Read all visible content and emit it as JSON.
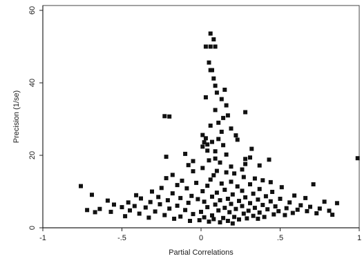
{
  "chart_data": {
    "type": "scatter",
    "title": "",
    "xlabel": "Partial Correlations",
    "ylabel": "Precision (1/se)",
    "xlim": [
      -1,
      1
    ],
    "ylim": [
      0,
      60
    ],
    "x_ticks": [
      {
        "value": -1,
        "label": "-1"
      },
      {
        "value": -0.5,
        "label": "-.5"
      },
      {
        "value": 0,
        "label": "0"
      },
      {
        "value": 0.5,
        "label": ".5"
      },
      {
        "value": 1,
        "label": "1"
      }
    ],
    "y_ticks": [
      {
        "value": 0,
        "label": "0"
      },
      {
        "value": 20,
        "label": "20"
      },
      {
        "value": 40,
        "label": "40"
      },
      {
        "value": 60,
        "label": "60"
      }
    ],
    "grid": false,
    "marker": "filled-square",
    "marker_color": "#111111",
    "points": [
      [
        0.06,
        53.6
      ],
      [
        0.08,
        52.0
      ],
      [
        0.03,
        50.0
      ],
      [
        0.06,
        50.0
      ],
      [
        0.09,
        50.0
      ],
      [
        0.05,
        45.6
      ],
      [
        0.06,
        43.5
      ],
      [
        0.07,
        43.5
      ],
      [
        0.08,
        41.2
      ],
      [
        0.09,
        39.2
      ],
      [
        0.15,
        38.1
      ],
      [
        0.1,
        37.3
      ],
      [
        0.03,
        36.0
      ],
      [
        0.13,
        35.5
      ],
      [
        0.16,
        33.8
      ],
      [
        0.09,
        32.5
      ],
      [
        0.28,
        31.9
      ],
      [
        0.17,
        31.0
      ],
      [
        0.14,
        30.3
      ],
      [
        -0.23,
        30.8
      ],
      [
        -0.2,
        30.7
      ],
      [
        0.11,
        29.0
      ],
      [
        0.06,
        28.2
      ],
      [
        0.19,
        27.4
      ],
      [
        0.13,
        26.5
      ],
      [
        0.22,
        25.5
      ],
      [
        0.01,
        25.6
      ],
      [
        0.03,
        24.7
      ],
      [
        0.11,
        24.5
      ],
      [
        0.23,
        24.3
      ],
      [
        0.02,
        23.6
      ],
      [
        0.07,
        23.7
      ],
      [
        0.04,
        23.0
      ],
      [
        0.01,
        22.4
      ],
      [
        0.14,
        22.8
      ],
      [
        0.32,
        21.8
      ],
      [
        0.04,
        21.3
      ],
      [
        0.09,
        21.1
      ],
      [
        -0.1,
        20.4
      ],
      [
        0.16,
        20.2
      ],
      [
        -0.22,
        19.6
      ],
      [
        0.31,
        19.4
      ],
      [
        0.28,
        19.0
      ],
      [
        0.09,
        19.1
      ],
      [
        0.43,
        18.8
      ],
      [
        0.99,
        19.2
      ],
      [
        0.05,
        18.6
      ],
      [
        -0.05,
        18.4
      ],
      [
        0.12,
        18.0
      ],
      [
        0.28,
        17.6
      ],
      [
        0.37,
        17.2
      ],
      [
        -0.08,
        17.3
      ],
      [
        0.19,
        16.9
      ],
      [
        0.01,
        16.5
      ],
      [
        0.26,
        16.1
      ],
      [
        0.1,
        15.7
      ],
      [
        0.16,
        15.3
      ],
      [
        -0.05,
        15.6
      ],
      [
        0.21,
        15.0
      ],
      [
        -0.18,
        14.6
      ],
      [
        0.08,
        14.5
      ],
      [
        -0.22,
        13.7
      ],
      [
        0.27,
        14.0
      ],
      [
        0.34,
        13.6
      ],
      [
        0.06,
        13.3
      ],
      [
        0.39,
        13.1
      ],
      [
        -0.12,
        13.0
      ],
      [
        0.19,
        12.7
      ],
      [
        0.44,
        12.6
      ],
      [
        -0.03,
        12.4
      ],
      [
        0.13,
        12.2
      ],
      [
        0.31,
        12.0
      ],
      [
        0.71,
        12.0
      ],
      [
        -0.76,
        11.5
      ],
      [
        -0.15,
        11.8
      ],
      [
        0.04,
        11.6
      ],
      [
        0.23,
        11.4
      ],
      [
        0.51,
        11.2
      ],
      [
        -0.25,
        11.0
      ],
      [
        -0.09,
        10.9
      ],
      [
        0.37,
        10.7
      ],
      [
        0.15,
        10.5
      ],
      [
        0.26,
        10.2
      ],
      [
        -0.31,
        10.0
      ],
      [
        0.01,
        10.1
      ],
      [
        0.45,
        9.9
      ],
      [
        0.1,
        9.7
      ],
      [
        -0.18,
        9.5
      ],
      [
        0.33,
        9.4
      ],
      [
        -0.69,
        9.1
      ],
      [
        -0.41,
        9.0
      ],
      [
        0.2,
        9.2
      ],
      [
        0.59,
        8.9
      ],
      [
        -0.06,
        8.8
      ],
      [
        0.41,
        8.7
      ],
      [
        -0.27,
        8.5
      ],
      [
        0.07,
        8.6
      ],
      [
        0.28,
        8.4
      ],
      [
        0.66,
        8.2
      ],
      [
        -0.38,
        8.1
      ],
      [
        -0.13,
        8.2
      ],
      [
        0.17,
        8.0
      ],
      [
        0.5,
        8.0
      ],
      [
        -0.02,
        7.9
      ],
      [
        0.36,
        7.8
      ],
      [
        -0.59,
        7.5
      ],
      [
        -0.21,
        7.6
      ],
      [
        0.12,
        7.6
      ],
      [
        0.24,
        7.4
      ],
      [
        0.44,
        7.3
      ],
      [
        -0.46,
        7.0
      ],
      [
        -0.32,
        7.1
      ],
      [
        0.02,
        7.2
      ],
      [
        0.56,
        7.0
      ],
      [
        0.78,
        7.2
      ],
      [
        0.86,
        6.8
      ],
      [
        -0.08,
        6.9
      ],
      [
        0.31,
        6.8
      ],
      [
        0.19,
        6.6
      ],
      [
        -0.55,
        6.4
      ],
      [
        -0.26,
        6.5
      ],
      [
        0.09,
        6.4
      ],
      [
        0.39,
        6.3
      ],
      [
        0.63,
        6.2
      ],
      [
        -0.42,
        6.0
      ],
      [
        -0.15,
        6.1
      ],
      [
        0.26,
        6.0
      ],
      [
        0.47,
        5.9
      ],
      [
        0.69,
        5.8
      ],
      [
        -0.5,
        5.7
      ],
      [
        -0.35,
        5.6
      ],
      [
        0.04,
        5.7
      ],
      [
        0.15,
        5.5
      ],
      [
        0.34,
        5.5
      ],
      [
        0.54,
        5.4
      ],
      [
        0.75,
        5.3
      ],
      [
        -0.64,
        5.2
      ],
      [
        -0.2,
        5.3
      ],
      [
        0.22,
        5.2
      ],
      [
        0.42,
        5.1
      ],
      [
        0.61,
        5.0
      ],
      [
        -0.72,
        4.9
      ],
      [
        -0.45,
        4.8
      ],
      [
        -0.1,
        4.9
      ],
      [
        0.11,
        4.8
      ],
      [
        0.3,
        4.7
      ],
      [
        0.49,
        4.6
      ],
      [
        0.67,
        4.6
      ],
      [
        0.81,
        4.7
      ],
      [
        -0.67,
        4.3
      ],
      [
        -0.57,
        4.4
      ],
      [
        -0.29,
        4.5
      ],
      [
        0.0,
        4.4
      ],
      [
        0.18,
        4.3
      ],
      [
        0.37,
        4.2
      ],
      [
        0.58,
        4.1
      ],
      [
        0.73,
        4.0
      ],
      [
        -0.39,
        3.9
      ],
      [
        -0.05,
        3.8
      ],
      [
        0.27,
        3.9
      ],
      [
        0.46,
        3.7
      ],
      [
        0.83,
        3.6
      ],
      [
        -0.23,
        3.5
      ],
      [
        0.07,
        3.4
      ],
      [
        0.33,
        3.3
      ],
      [
        0.53,
        3.5
      ],
      [
        -0.48,
        3.2
      ],
      [
        -0.13,
        3.1
      ],
      [
        0.21,
        3.0
      ],
      [
        0.4,
        3.0
      ],
      [
        -0.33,
        2.8
      ],
      [
        0.02,
        2.9
      ],
      [
        0.14,
        2.7
      ],
      [
        0.29,
        2.6
      ],
      [
        -0.17,
        2.5
      ],
      [
        0.08,
        2.4
      ],
      [
        0.24,
        2.3
      ],
      [
        0.36,
        2.5
      ],
      [
        -0.01,
        2.1
      ],
      [
        0.17,
        1.9
      ],
      [
        0.05,
        1.7
      ],
      [
        0.12,
        1.5
      ],
      [
        -0.07,
        1.9
      ],
      [
        0.2,
        1.2
      ]
    ]
  }
}
